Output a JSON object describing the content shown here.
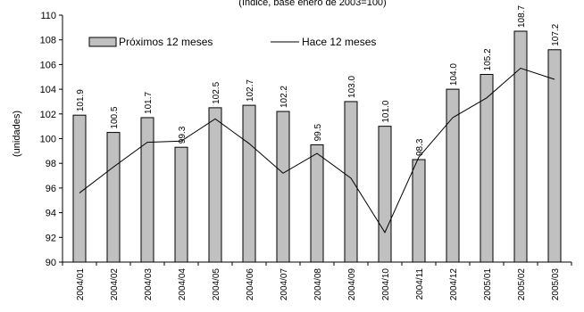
{
  "chart_data": {
    "type": "bar",
    "subtitle": "(índice, base enero de 2003=100)",
    "ylabel": "(unidades)",
    "ylim": [
      90,
      110
    ],
    "yticks": [
      90,
      92,
      94,
      96,
      98,
      100,
      102,
      104,
      106,
      108,
      110
    ],
    "categories": [
      "2004/01",
      "2004/02",
      "2004/03",
      "2004/04",
      "2004/05",
      "2004/06",
      "2004/07",
      "2004/08",
      "2004/09",
      "2004/10",
      "2004/11",
      "2004/12",
      "2005/01",
      "2005/02",
      "2005/03"
    ],
    "series": [
      {
        "name": "Próximos 12 meses",
        "type": "bar",
        "color": "#c0c0c0",
        "values": [
          101.9,
          100.5,
          101.7,
          99.3,
          102.5,
          102.7,
          102.2,
          99.5,
          103.0,
          101.0,
          98.3,
          104.0,
          105.2,
          108.7,
          107.2
        ],
        "labels": [
          "101.9",
          "100.5",
          "101.7",
          "99.3",
          "102.5",
          "102.7",
          "102.2",
          "99.5",
          "103.0",
          "101.0",
          "98.3",
          "104.0",
          "105.2",
          "108.7",
          "107.2"
        ]
      },
      {
        "name": "Hace 12 meses",
        "type": "line",
        "color": "#000000",
        "values": [
          95.6,
          97.7,
          99.7,
          99.8,
          101.6,
          99.6,
          97.2,
          98.8,
          96.8,
          92.4,
          98.5,
          101.7,
          103.3,
          105.7,
          104.8
        ]
      }
    ],
    "legend": "top-left",
    "grid": false
  }
}
